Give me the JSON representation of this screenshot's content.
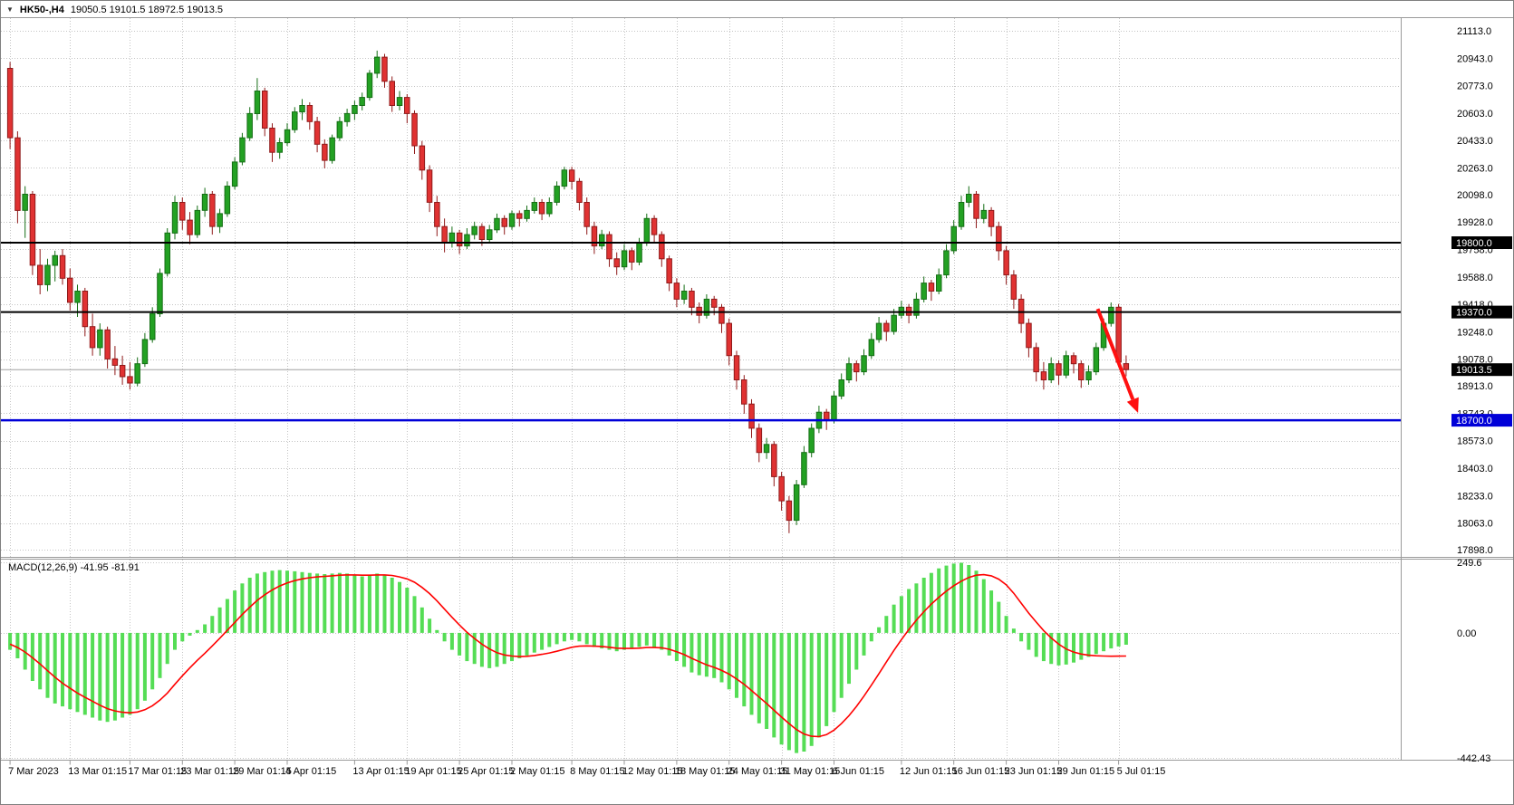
{
  "header": {
    "icon": "▼",
    "symbol_period": "HK50-,H4",
    "ohlc": "19050.5 19101.5 18972.5 19013.5"
  },
  "macd_label": "MACD(12,26,9) -41.95 -81.91",
  "colors": {
    "up": "#23a123",
    "up_border": "#156e15",
    "down": "#e03232",
    "down_border": "#8f1a1a",
    "grid": "#c4c4c4",
    "pane_border": "#9a9a9a",
    "macd_hist": "#55dd55",
    "macd_signal": "#ff0000",
    "level_black": "#000000",
    "level_blue": "#0000d8",
    "price_line": "#a0a0a0",
    "arrow": "#ff1010",
    "axis_text": "#000000",
    "tag_text": "#ffffff"
  },
  "chart_data": {
    "type": "candlestick",
    "symbol": "HK50-",
    "timeframe": "H4",
    "ohlc_current": {
      "open": 19050.5,
      "high": 19101.5,
      "low": 18972.5,
      "close": 19013.5
    },
    "price_range": {
      "top": 21113.0,
      "bottom": 17898.0
    },
    "y_axis_labels": [
      "21113.0",
      "20943.0",
      "20773.0",
      "20603.0",
      "20433.0",
      "20263.0",
      "20098.0",
      "19928.0",
      "19758.0",
      "19588.0",
      "19418.0",
      "19248.0",
      "19078.0",
      "18913.0",
      "18743.0",
      "18573.0",
      "18403.0",
      "18233.0",
      "18063.0",
      "17898.0"
    ],
    "x_ticks": [
      {
        "i": 0,
        "label": "7 Mar 2023"
      },
      {
        "i": 8,
        "label": "13 Mar 01:15"
      },
      {
        "i": 16,
        "label": "17 Mar 01:15"
      },
      {
        "i": 23,
        "label": "23 Mar 01:15"
      },
      {
        "i": 30,
        "label": "29 Mar 01:15"
      },
      {
        "i": 37,
        "label": "4 Apr 01:15"
      },
      {
        "i": 46,
        "label": "13 Apr 01:15"
      },
      {
        "i": 53,
        "label": "19 Apr 01:15"
      },
      {
        "i": 60,
        "label": "25 Apr 01:15"
      },
      {
        "i": 67,
        "label": "2 May 01:15"
      },
      {
        "i": 75,
        "label": "8 May 01:15"
      },
      {
        "i": 82,
        "label": "12 May 01:15"
      },
      {
        "i": 89,
        "label": "18 May 01:15"
      },
      {
        "i": 96,
        "label": "24 May 01:15"
      },
      {
        "i": 103,
        "label": "31 May 01:15"
      },
      {
        "i": 110,
        "label": "6 Jun 01:15"
      },
      {
        "i": 119,
        "label": "12 Jun 01:15"
      },
      {
        "i": 126,
        "label": "16 Jun 01:15"
      },
      {
        "i": 133,
        "label": "23 Jun 01:15"
      },
      {
        "i": 140,
        "label": "29 Jun 01:15"
      },
      {
        "i": 148,
        "label": "5 Jul 01:15"
      }
    ],
    "levels": [
      {
        "price": 19800.0,
        "label": "19800.0",
        "color": "#000000",
        "width": 2
      },
      {
        "price": 19370.0,
        "label": "19370.0",
        "color": "#000000",
        "width": 2
      },
      {
        "price": 18700.0,
        "label": "18700.0",
        "color": "#0000d8",
        "width": 2.5
      }
    ],
    "current_price": {
      "value": 19013.5,
      "label": "19013.5"
    },
    "annotation_arrow": {
      "from": {
        "index": 145.2,
        "price": 19390
      },
      "to": {
        "index": 150.6,
        "price": 18745
      }
    },
    "candles": [
      [
        20880,
        20920,
        20380,
        20450
      ],
      [
        20450,
        20490,
        19920,
        20000
      ],
      [
        20000,
        20150,
        19830,
        20100
      ],
      [
        20100,
        20120,
        19600,
        19660
      ],
      [
        19660,
        19760,
        19480,
        19540
      ],
      [
        19540,
        19700,
        19500,
        19660
      ],
      [
        19660,
        19750,
        19560,
        19720
      ],
      [
        19720,
        19760,
        19540,
        19580
      ],
      [
        19580,
        19640,
        19380,
        19430
      ],
      [
        19430,
        19540,
        19340,
        19500
      ],
      [
        19500,
        19520,
        19220,
        19280
      ],
      [
        19280,
        19360,
        19100,
        19150
      ],
      [
        19150,
        19300,
        19100,
        19260
      ],
      [
        19260,
        19280,
        19020,
        19080
      ],
      [
        19080,
        19160,
        18980,
        19040
      ],
      [
        19040,
        19100,
        18920,
        18970
      ],
      [
        18970,
        19060,
        18890,
        18930
      ],
      [
        18930,
        19090,
        18910,
        19050
      ],
      [
        19050,
        19240,
        19030,
        19200
      ],
      [
        19200,
        19400,
        19180,
        19360
      ],
      [
        19360,
        19640,
        19340,
        19610
      ],
      [
        19610,
        19890,
        19590,
        19860
      ],
      [
        19860,
        20090,
        19820,
        20050
      ],
      [
        20050,
        20080,
        19880,
        19940
      ],
      [
        19940,
        19990,
        19790,
        19850
      ],
      [
        19850,
        20030,
        19830,
        20000
      ],
      [
        20000,
        20140,
        19960,
        20100
      ],
      [
        20100,
        20120,
        19850,
        19900
      ],
      [
        19900,
        20010,
        19860,
        19980
      ],
      [
        19980,
        20180,
        19960,
        20150
      ],
      [
        20150,
        20330,
        20130,
        20300
      ],
      [
        20300,
        20480,
        20280,
        20450
      ],
      [
        20450,
        20640,
        20430,
        20600
      ],
      [
        20600,
        20820,
        20560,
        20740
      ],
      [
        20740,
        20760,
        20460,
        20510
      ],
      [
        20510,
        20540,
        20300,
        20360
      ],
      [
        20360,
        20450,
        20320,
        20420
      ],
      [
        20420,
        20540,
        20400,
        20500
      ],
      [
        20500,
        20640,
        20480,
        20610
      ],
      [
        20610,
        20690,
        20560,
        20650
      ],
      [
        20650,
        20670,
        20500,
        20550
      ],
      [
        20550,
        20580,
        20360,
        20410
      ],
      [
        20410,
        20440,
        20260,
        20310
      ],
      [
        20310,
        20470,
        20290,
        20450
      ],
      [
        20450,
        20580,
        20430,
        20550
      ],
      [
        20550,
        20630,
        20520,
        20600
      ],
      [
        20600,
        20680,
        20560,
        20650
      ],
      [
        20650,
        20730,
        20620,
        20700
      ],
      [
        20700,
        20870,
        20680,
        20850
      ],
      [
        20850,
        20990,
        20820,
        20950
      ],
      [
        20950,
        20970,
        20760,
        20800
      ],
      [
        20800,
        20830,
        20610,
        20650
      ],
      [
        20650,
        20740,
        20620,
        20700
      ],
      [
        20700,
        20720,
        20540,
        20600
      ],
      [
        20600,
        20620,
        20350,
        20400
      ],
      [
        20400,
        20430,
        20190,
        20250
      ],
      [
        20250,
        20280,
        19990,
        20050
      ],
      [
        20050,
        20090,
        19840,
        19900
      ],
      [
        19900,
        19950,
        19740,
        19800
      ],
      [
        19800,
        19900,
        19770,
        19860
      ],
      [
        19860,
        19880,
        19730,
        19780
      ],
      [
        19780,
        19890,
        19760,
        19850
      ],
      [
        19850,
        19930,
        19820,
        19900
      ],
      [
        19900,
        19920,
        19780,
        19820
      ],
      [
        19820,
        19910,
        19800,
        19880
      ],
      [
        19880,
        19980,
        19860,
        19950
      ],
      [
        19950,
        19970,
        19850,
        19900
      ],
      [
        19900,
        20000,
        19880,
        19980
      ],
      [
        19980,
        20000,
        19900,
        19950
      ],
      [
        19950,
        20030,
        19930,
        20000
      ],
      [
        20000,
        20080,
        19980,
        20050
      ],
      [
        20050,
        20070,
        19940,
        19980
      ],
      [
        19980,
        20080,
        19960,
        20050
      ],
      [
        20050,
        20180,
        20030,
        20150
      ],
      [
        20150,
        20270,
        20130,
        20250
      ],
      [
        20250,
        20270,
        20130,
        20180
      ],
      [
        20180,
        20200,
        20000,
        20050
      ],
      [
        20050,
        20080,
        19850,
        19900
      ],
      [
        19900,
        19930,
        19730,
        19780
      ],
      [
        19780,
        19880,
        19760,
        19850
      ],
      [
        19850,
        19870,
        19650,
        19700
      ],
      [
        19700,
        19740,
        19600,
        19650
      ],
      [
        19650,
        19790,
        19630,
        19750
      ],
      [
        19750,
        19770,
        19630,
        19680
      ],
      [
        19680,
        19830,
        19660,
        19800
      ],
      [
        19800,
        19980,
        19780,
        19950
      ],
      [
        19950,
        19970,
        19800,
        19850
      ],
      [
        19850,
        19870,
        19650,
        19700
      ],
      [
        19700,
        19720,
        19500,
        19550
      ],
      [
        19550,
        19580,
        19400,
        19450
      ],
      [
        19450,
        19540,
        19420,
        19500
      ],
      [
        19500,
        19520,
        19350,
        19400
      ],
      [
        19400,
        19430,
        19300,
        19350
      ],
      [
        19350,
        19480,
        19330,
        19450
      ],
      [
        19450,
        19470,
        19350,
        19400
      ],
      [
        19400,
        19420,
        19240,
        19300
      ],
      [
        19300,
        19330,
        19040,
        19100
      ],
      [
        19100,
        19130,
        18890,
        18950
      ],
      [
        18950,
        18980,
        18740,
        18800
      ],
      [
        18800,
        18830,
        18590,
        18650
      ],
      [
        18650,
        18680,
        18440,
        18500
      ],
      [
        18500,
        18590,
        18460,
        18550
      ],
      [
        18550,
        18570,
        18290,
        18350
      ],
      [
        18350,
        18380,
        18140,
        18200
      ],
      [
        18200,
        18230,
        18000,
        18080
      ],
      [
        18080,
        18330,
        18050,
        18300
      ],
      [
        18300,
        18540,
        18280,
        18500
      ],
      [
        18500,
        18680,
        18470,
        18650
      ],
      [
        18650,
        18790,
        18620,
        18750
      ],
      [
        18750,
        18770,
        18640,
        18700
      ],
      [
        18700,
        18880,
        18680,
        18850
      ],
      [
        18850,
        18990,
        18830,
        18950
      ],
      [
        18950,
        19090,
        18930,
        19050
      ],
      [
        19050,
        19070,
        18940,
        19000
      ],
      [
        19000,
        19140,
        18980,
        19100
      ],
      [
        19100,
        19240,
        19080,
        19200
      ],
      [
        19200,
        19340,
        19180,
        19300
      ],
      [
        19300,
        19320,
        19190,
        19250
      ],
      [
        19250,
        19390,
        19230,
        19350
      ],
      [
        19350,
        19440,
        19330,
        19400
      ],
      [
        19400,
        19420,
        19300,
        19350
      ],
      [
        19350,
        19490,
        19330,
        19450
      ],
      [
        19450,
        19590,
        19430,
        19550
      ],
      [
        19550,
        19570,
        19440,
        19500
      ],
      [
        19500,
        19640,
        19480,
        19600
      ],
      [
        19600,
        19790,
        19580,
        19750
      ],
      [
        19750,
        19940,
        19730,
        19900
      ],
      [
        19900,
        20090,
        19880,
        20050
      ],
      [
        20050,
        20150,
        20020,
        20100
      ],
      [
        20100,
        20120,
        19890,
        19950
      ],
      [
        19950,
        20040,
        19920,
        20000
      ],
      [
        20000,
        20020,
        19840,
        19900
      ],
      [
        19900,
        19930,
        19690,
        19750
      ],
      [
        19750,
        19780,
        19540,
        19600
      ],
      [
        19600,
        19630,
        19390,
        19450
      ],
      [
        19450,
        19480,
        19240,
        19300
      ],
      [
        19300,
        19330,
        19090,
        19150
      ],
      [
        19150,
        19180,
        18940,
        19000
      ],
      [
        19000,
        19060,
        18890,
        18950
      ],
      [
        18950,
        19090,
        18930,
        19050
      ],
      [
        19050,
        19070,
        18920,
        18980
      ],
      [
        18980,
        19130,
        18960,
        19100
      ],
      [
        19100,
        19120,
        18990,
        19050
      ],
      [
        19050,
        19070,
        18900,
        18950
      ],
      [
        18950,
        19040,
        18920,
        19000
      ],
      [
        19000,
        19180,
        18980,
        19150
      ],
      [
        19150,
        19330,
        19130,
        19300
      ],
      [
        19300,
        19430,
        19280,
        19400
      ],
      [
        19400,
        19420,
        19030,
        19060
      ],
      [
        19050.5,
        19101.5,
        18972.5,
        19013.5
      ]
    ],
    "macd": {
      "name": "MACD(12,26,9)",
      "macd_value": -41.95,
      "signal_value": -81.91,
      "y_labels": [
        "249.6",
        "0.00",
        "-442.43"
      ],
      "range": {
        "top": 249.6,
        "bottom": -442.43
      },
      "histogram": [
        -60,
        -90,
        -130,
        -170,
        -200,
        -230,
        -250,
        -260,
        -270,
        -280,
        -290,
        -300,
        -310,
        -315,
        -310,
        -300,
        -290,
        -270,
        -240,
        -200,
        -160,
        -110,
        -60,
        -30,
        -10,
        10,
        30,
        60,
        90,
        120,
        150,
        175,
        195,
        210,
        215,
        220,
        222,
        220,
        218,
        215,
        212,
        210,
        208,
        210,
        212,
        210,
        205,
        200,
        205,
        210,
        205,
        195,
        180,
        160,
        130,
        90,
        50,
        10,
        -30,
        -60,
        -80,
        -100,
        -110,
        -120,
        -125,
        -120,
        -110,
        -100,
        -90,
        -80,
        -70,
        -60,
        -50,
        -40,
        -30,
        -25,
        -30,
        -40,
        -50,
        -55,
        -60,
        -65,
        -60,
        -55,
        -50,
        -45,
        -50,
        -60,
        -80,
        -100,
        -120,
        -140,
        -150,
        -155,
        -160,
        -175,
        -200,
        -230,
        -260,
        -290,
        -320,
        -340,
        -370,
        -395,
        -415,
        -425,
        -420,
        -400,
        -370,
        -330,
        -280,
        -230,
        -180,
        -130,
        -80,
        -30,
        20,
        60,
        100,
        130,
        155,
        175,
        195,
        212,
        228,
        238,
        245,
        248,
        240,
        220,
        190,
        150,
        110,
        60,
        15,
        -30,
        -60,
        -85,
        -100,
        -110,
        -115,
        -112,
        -105,
        -95,
        -85,
        -75,
        -65,
        -55,
        -48,
        -41.95
      ],
      "signal_line": [
        -40,
        -52,
        -68,
        -88,
        -110,
        -134,
        -157,
        -178,
        -196,
        -213,
        -228,
        -242,
        -256,
        -268,
        -276,
        -281,
        -283,
        -280,
        -272,
        -258,
        -238,
        -213,
        -182,
        -152,
        -124,
        -97,
        -72,
        -46,
        -19,
        9,
        37,
        65,
        91,
        115,
        135,
        152,
        166,
        177,
        185,
        191,
        195,
        198,
        200,
        202,
        204,
        205,
        205,
        204,
        204,
        205,
        205,
        203,
        198,
        191,
        179,
        161,
        139,
        113,
        84,
        55,
        28,
        2,
        -20,
        -40,
        -57,
        -70,
        -78,
        -82,
        -84,
        -83,
        -80,
        -76,
        -71,
        -65,
        -58,
        -51,
        -47,
        -46,
        -47,
        -48,
        -51,
        -54,
        -55,
        -55,
        -54,
        -52,
        -52,
        -53,
        -58,
        -67,
        -77,
        -90,
        -102,
        -113,
        -122,
        -133,
        -146,
        -163,
        -182,
        -204,
        -227,
        -250,
        -274,
        -298,
        -321,
        -342,
        -358,
        -366,
        -367,
        -360,
        -344,
        -321,
        -293,
        -260,
        -224,
        -185,
        -144,
        -103,
        -62,
        -24,
        12,
        45,
        75,
        102,
        126,
        148,
        167,
        183,
        196,
        204,
        206,
        202,
        190,
        170,
        140,
        105,
        70,
        38,
        8,
        -18,
        -40,
        -57,
        -68,
        -75,
        -79,
        -81,
        -82,
        -82.5,
        -82.3,
        -81.91
      ]
    }
  }
}
